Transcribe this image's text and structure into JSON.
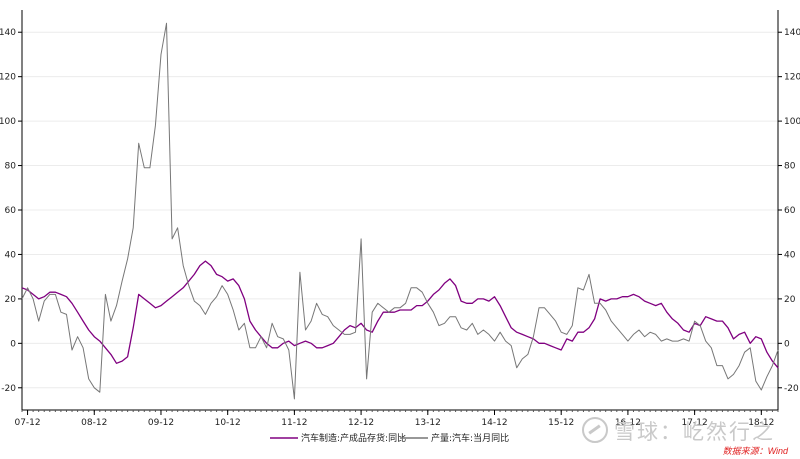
{
  "chart_data": {
    "type": "line",
    "title": "",
    "xlabel": "",
    "ylabel": "",
    "ylim": [
      -30,
      150
    ],
    "y_ticks": [
      -20,
      0,
      20,
      40,
      60,
      80,
      100,
      120,
      140
    ],
    "x_ticks": [
      "07-12",
      "08-12",
      "09-12",
      "10-12",
      "11-12",
      "12-12",
      "13-12",
      "14-12",
      "15-12",
      "16-12",
      "17-12",
      "18-12"
    ],
    "x_start": "2007-11",
    "x_end": "2019-03",
    "grid": true,
    "dual_axis": true,
    "legend_position": "bottom",
    "series": [
      {
        "name": "汽车制造:产成品存货:同比",
        "color": "#800080",
        "points": [
          [
            "2007-11",
            25
          ],
          [
            "2007-12",
            24
          ],
          [
            "2008-01",
            22
          ],
          [
            "2008-02",
            20
          ],
          [
            "2008-03",
            21
          ],
          [
            "2008-04",
            23
          ],
          [
            "2008-05",
            23
          ],
          [
            "2008-06",
            22
          ],
          [
            "2008-07",
            21
          ],
          [
            "2008-08",
            18
          ],
          [
            "2008-09",
            14
          ],
          [
            "2008-10",
            10
          ],
          [
            "2008-11",
            6
          ],
          [
            "2008-12",
            3
          ],
          [
            "2009-01",
            1
          ],
          [
            "2009-02",
            -2
          ],
          [
            "2009-03",
            -5
          ],
          [
            "2009-04",
            -9
          ],
          [
            "2009-05",
            -8
          ],
          [
            "2009-06",
            -6
          ],
          [
            "2009-07",
            7
          ],
          [
            "2009-08",
            22
          ],
          [
            "2009-09",
            20
          ],
          [
            "2009-10",
            18
          ],
          [
            "2009-11",
            16
          ],
          [
            "2009-12",
            17
          ],
          [
            "2010-01",
            19
          ],
          [
            "2010-02",
            21
          ],
          [
            "2010-03",
            23
          ],
          [
            "2010-04",
            25
          ],
          [
            "2010-05",
            28
          ],
          [
            "2010-06",
            31
          ],
          [
            "2010-07",
            35
          ],
          [
            "2010-08",
            37
          ],
          [
            "2010-09",
            35
          ],
          [
            "2010-10",
            31
          ],
          [
            "2010-11",
            30
          ],
          [
            "2010-12",
            28
          ],
          [
            "2011-01",
            29
          ],
          [
            "2011-02",
            26
          ],
          [
            "2011-03",
            20
          ],
          [
            "2011-04",
            10
          ],
          [
            "2011-05",
            6
          ],
          [
            "2011-06",
            3
          ],
          [
            "2011-07",
            0
          ],
          [
            "2011-08",
            -2
          ],
          [
            "2011-09",
            -2
          ],
          [
            "2011-10",
            0
          ],
          [
            "2011-11",
            1
          ],
          [
            "2011-12",
            -1
          ],
          [
            "2012-01",
            0
          ],
          [
            "2012-02",
            1
          ],
          [
            "2012-03",
            0
          ],
          [
            "2012-04",
            -2
          ],
          [
            "2012-05",
            -2
          ],
          [
            "2012-06",
            -1
          ],
          [
            "2012-07",
            0
          ],
          [
            "2012-08",
            3
          ],
          [
            "2012-09",
            6
          ],
          [
            "2012-10",
            8
          ],
          [
            "2012-11",
            7
          ],
          [
            "2012-12",
            9
          ],
          [
            "2013-01",
            6
          ],
          [
            "2013-02",
            5
          ],
          [
            "2013-03",
            10
          ],
          [
            "2013-04",
            14
          ],
          [
            "2013-05",
            14
          ],
          [
            "2013-06",
            14
          ],
          [
            "2013-07",
            15
          ],
          [
            "2013-08",
            15
          ],
          [
            "2013-09",
            15
          ],
          [
            "2013-10",
            17
          ],
          [
            "2013-11",
            17
          ],
          [
            "2013-12",
            19
          ],
          [
            "2014-01",
            22
          ],
          [
            "2014-02",
            24
          ],
          [
            "2014-03",
            27
          ],
          [
            "2014-04",
            29
          ],
          [
            "2014-05",
            26
          ],
          [
            "2014-06",
            19
          ],
          [
            "2014-07",
            18
          ],
          [
            "2014-08",
            18
          ],
          [
            "2014-09",
            20
          ],
          [
            "2014-10",
            20
          ],
          [
            "2014-11",
            19
          ],
          [
            "2014-12",
            21
          ],
          [
            "2015-01",
            17
          ],
          [
            "2015-02",
            12
          ],
          [
            "2015-03",
            7
          ],
          [
            "2015-04",
            5
          ],
          [
            "2015-05",
            4
          ],
          [
            "2015-06",
            3
          ],
          [
            "2015-07",
            2
          ],
          [
            "2015-08",
            0
          ],
          [
            "2015-09",
            0
          ],
          [
            "2015-10",
            -1
          ],
          [
            "2015-11",
            -2
          ],
          [
            "2015-12",
            -3
          ],
          [
            "2016-01",
            2
          ],
          [
            "2016-02",
            1
          ],
          [
            "2016-03",
            5
          ],
          [
            "2016-04",
            5
          ],
          [
            "2016-05",
            7
          ],
          [
            "2016-06",
            11
          ],
          [
            "2016-07",
            20
          ],
          [
            "2016-08",
            19
          ],
          [
            "2016-09",
            20
          ],
          [
            "2016-10",
            20
          ],
          [
            "2016-11",
            21
          ],
          [
            "2016-12",
            21
          ],
          [
            "2017-01",
            22
          ],
          [
            "2017-02",
            21
          ],
          [
            "2017-03",
            19
          ],
          [
            "2017-04",
            18
          ],
          [
            "2017-05",
            17
          ],
          [
            "2017-06",
            18
          ],
          [
            "2017-07",
            14
          ],
          [
            "2017-08",
            11
          ],
          [
            "2017-09",
            9
          ],
          [
            "2017-10",
            6
          ],
          [
            "2017-11",
            5
          ],
          [
            "2017-12",
            9
          ],
          [
            "2018-01",
            8
          ],
          [
            "2018-02",
            12
          ],
          [
            "2018-03",
            11
          ],
          [
            "2018-04",
            10
          ],
          [
            "2018-05",
            10
          ],
          [
            "2018-06",
            7
          ],
          [
            "2018-07",
            2
          ],
          [
            "2018-08",
            4
          ],
          [
            "2018-09",
            5
          ],
          [
            "2018-10",
            0
          ],
          [
            "2018-11",
            3
          ],
          [
            "2018-12",
            2
          ],
          [
            "2019-01",
            -4
          ],
          [
            "2019-02",
            -8
          ],
          [
            "2019-03",
            -11
          ]
        ]
      },
      {
        "name": "产量:汽车:当月同比",
        "color": "#777777",
        "points": [
          [
            "2007-11",
            20
          ],
          [
            "2007-12",
            25
          ],
          [
            "2008-01",
            20
          ],
          [
            "2008-02",
            10
          ],
          [
            "2008-03",
            19
          ],
          [
            "2008-04",
            22
          ],
          [
            "2008-05",
            22
          ],
          [
            "2008-06",
            14
          ],
          [
            "2008-07",
            13
          ],
          [
            "2008-08",
            -3
          ],
          [
            "2008-09",
            3
          ],
          [
            "2008-10",
            -2
          ],
          [
            "2008-11",
            -16
          ],
          [
            "2008-12",
            -20
          ],
          [
            "2009-01",
            -22
          ],
          [
            "2009-02",
            22
          ],
          [
            "2009-03",
            10
          ],
          [
            "2009-04",
            17
          ],
          [
            "2009-05",
            28
          ],
          [
            "2009-06",
            38
          ],
          [
            "2009-07",
            52
          ],
          [
            "2009-08",
            90
          ],
          [
            "2009-09",
            79
          ],
          [
            "2009-10",
            79
          ],
          [
            "2009-11",
            98
          ],
          [
            "2009-12",
            130
          ],
          [
            "2010-01",
            144
          ],
          [
            "2010-02",
            47
          ],
          [
            "2010-03",
            52
          ],
          [
            "2010-04",
            35
          ],
          [
            "2010-05",
            26
          ],
          [
            "2010-06",
            19
          ],
          [
            "2010-07",
            17
          ],
          [
            "2010-08",
            13
          ],
          [
            "2010-09",
            18
          ],
          [
            "2010-10",
            21
          ],
          [
            "2010-11",
            26
          ],
          [
            "2010-12",
            22
          ],
          [
            "2011-01",
            15
          ],
          [
            "2011-02",
            6
          ],
          [
            "2011-03",
            9
          ],
          [
            "2011-04",
            -2
          ],
          [
            "2011-05",
            -2
          ],
          [
            "2011-06",
            3
          ],
          [
            "2011-07",
            -2
          ],
          [
            "2011-08",
            9
          ],
          [
            "2011-09",
            3
          ],
          [
            "2011-10",
            2
          ],
          [
            "2011-11",
            -3
          ],
          [
            "2011-12",
            -25
          ],
          [
            "2012-01",
            32
          ],
          [
            "2012-02",
            6
          ],
          [
            "2012-03",
            10
          ],
          [
            "2012-04",
            18
          ],
          [
            "2012-05",
            13
          ],
          [
            "2012-06",
            12
          ],
          [
            "2012-07",
            8
          ],
          [
            "2012-08",
            6
          ],
          [
            "2012-09",
            4
          ],
          [
            "2012-10",
            4
          ],
          [
            "2012-11",
            5
          ],
          [
            "2012-12",
            47
          ],
          [
            "2013-01",
            -16
          ],
          [
            "2013-02",
            14
          ],
          [
            "2013-03",
            18
          ],
          [
            "2013-04",
            16
          ],
          [
            "2013-05",
            14
          ],
          [
            "2013-06",
            16
          ],
          [
            "2013-07",
            16
          ],
          [
            "2013-08",
            18
          ],
          [
            "2013-09",
            25
          ],
          [
            "2013-10",
            25
          ],
          [
            "2013-11",
            23
          ],
          [
            "2013-12",
            18
          ],
          [
            "2014-01",
            14
          ],
          [
            "2014-02",
            8
          ],
          [
            "2014-03",
            9
          ],
          [
            "2014-04",
            12
          ],
          [
            "2014-05",
            12
          ],
          [
            "2014-06",
            7
          ],
          [
            "2014-07",
            6
          ],
          [
            "2014-08",
            9
          ],
          [
            "2014-09",
            4
          ],
          [
            "2014-10",
            6
          ],
          [
            "2014-11",
            4
          ],
          [
            "2014-12",
            1
          ],
          [
            "2015-01",
            5
          ],
          [
            "2015-02",
            1
          ],
          [
            "2015-03",
            -1
          ],
          [
            "2015-04",
            -11
          ],
          [
            "2015-05",
            -7
          ],
          [
            "2015-06",
            -5
          ],
          [
            "2015-07",
            3
          ],
          [
            "2015-08",
            16
          ],
          [
            "2015-09",
            16
          ],
          [
            "2015-10",
            13
          ],
          [
            "2015-11",
            10
          ],
          [
            "2015-12",
            5
          ],
          [
            "2016-01",
            4
          ],
          [
            "2016-02",
            8
          ],
          [
            "2016-03",
            25
          ],
          [
            "2016-04",
            24
          ],
          [
            "2016-05",
            31
          ],
          [
            "2016-06",
            18
          ],
          [
            "2016-07",
            18
          ],
          [
            "2016-08",
            15
          ],
          [
            "2016-09",
            10
          ],
          [
            "2016-10",
            7
          ],
          [
            "2016-11",
            4
          ],
          [
            "2016-12",
            1
          ],
          [
            "2017-01",
            4
          ],
          [
            "2017-02",
            6
          ],
          [
            "2017-03",
            3
          ],
          [
            "2017-04",
            5
          ],
          [
            "2017-05",
            4
          ],
          [
            "2017-06",
            1
          ],
          [
            "2017-07",
            2
          ],
          [
            "2017-08",
            1
          ],
          [
            "2017-09",
            1
          ],
          [
            "2017-10",
            2
          ],
          [
            "2017-11",
            1
          ],
          [
            "2017-12",
            10
          ],
          [
            "2018-01",
            8
          ],
          [
            "2018-02",
            1
          ],
          [
            "2018-03",
            -2
          ],
          [
            "2018-04",
            -10
          ],
          [
            "2018-05",
            -10
          ],
          [
            "2018-06",
            -16
          ],
          [
            "2018-07",
            -14
          ],
          [
            "2018-08",
            -10
          ],
          [
            "2018-09",
            -4
          ],
          [
            "2018-10",
            -2
          ],
          [
            "2018-11",
            -17
          ],
          [
            "2018-12",
            -21
          ],
          [
            "2019-01",
            -15
          ],
          [
            "2019-02",
            -10
          ],
          [
            "2019-03",
            -3
          ]
        ]
      }
    ],
    "source_note": "数据来源：Wind"
  },
  "watermark": "雪球：屹然行之"
}
